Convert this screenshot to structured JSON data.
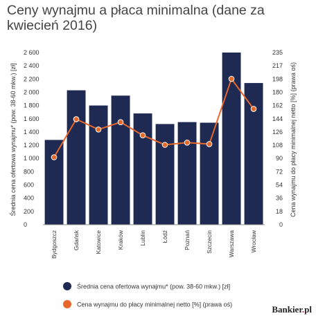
{
  "title": "Ceny wynajmu a płaca minimalna (dane za kwiecień 2016)",
  "brand": {
    "name": "Bankier",
    "dot": ".",
    "suffix": "pl"
  },
  "chart_data": {
    "type": "bar",
    "title": "Ceny wynajmu a płaca minimalna (dane za kwiecień 2016)",
    "categories": [
      "Bydgoszcz",
      "Gdańsk",
      "Katowice",
      "Kraków",
      "Lublin",
      "Łódź",
      "Poznań",
      "Szczecin",
      "Warszawa",
      "Wrocław"
    ],
    "series": [
      {
        "name": "Średnia cena ofertowa wynajmu* (pow. 38-60 mkw.) [zł]",
        "type": "bar",
        "axis": "left",
        "color": "#1f2a52",
        "values": [
          1280,
          2030,
          1800,
          1950,
          1680,
          1520,
          1550,
          1540,
          2600,
          2140
        ]
      },
      {
        "name": "Cena wynajmu do płacy minimalnej netto [%] (prawa oś)",
        "type": "line",
        "axis": "right",
        "color": "#e5672a",
        "values": [
          92,
          144,
          130,
          140,
          122,
          109,
          112,
          110,
          199,
          158
        ]
      }
    ],
    "ylabel": "Średnia cena ofertowa wynajmu* (pow. 38-60 mkw.) [zł]",
    "y2label": "Cena wynajmu do płacy minimalnej netto [%] (prawa oś)",
    "ylim": [
      0,
      2600
    ],
    "y2lim": [
      0,
      235
    ],
    "yticks": [
      "0",
      "200",
      "400",
      "600",
      "800",
      "1 000",
      "1 200",
      "1 400",
      "1 600",
      "1 800",
      "2 000",
      "2 200",
      "2 400",
      "2 600"
    ],
    "y2ticks": [
      "0",
      "18",
      "36",
      "54",
      "72",
      "90",
      "108",
      "126",
      "144",
      "162",
      "180",
      "198",
      "217",
      "235"
    ],
    "grid": false,
    "legend": "bottom"
  }
}
